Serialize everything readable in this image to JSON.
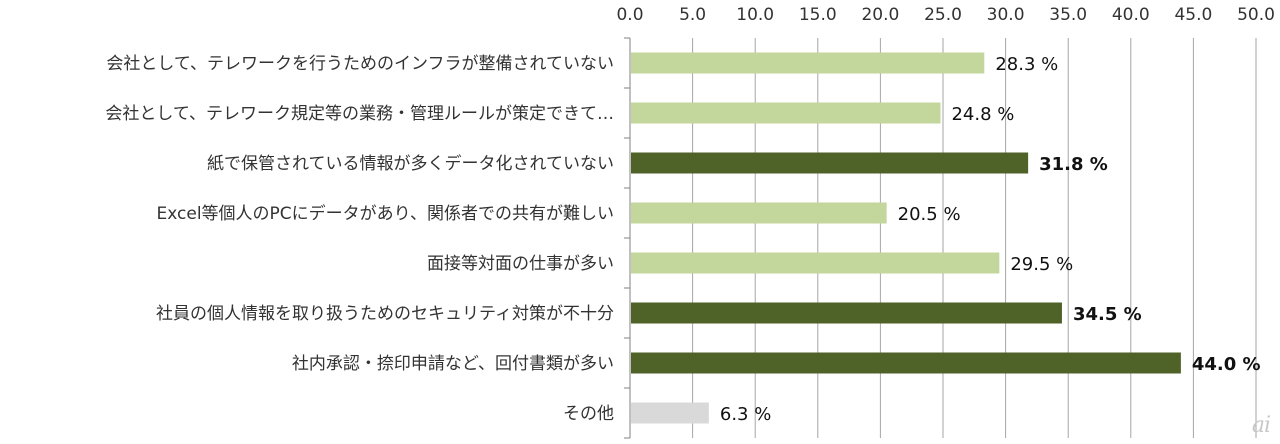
{
  "chart_data": {
    "type": "bar",
    "orientation": "horizontal",
    "xlim": [
      0,
      50
    ],
    "x_ticks": [
      "0.0",
      "5.0",
      "10.0",
      "15.0",
      "20.0",
      "25.0",
      "30.0",
      "35.0",
      "40.0",
      "45.0",
      "50.0"
    ],
    "grid": true,
    "categories": [
      "会社として、テレワークを行うためのインフラが整備されていない",
      "会社として、テレワーク規定等の業務・管理ルールが策定できて…",
      "紙で保管されている情報が多くデータ化されていない",
      "Excel等個人のPCにデータがあり、関係者での共有が難しい",
      "面接等対面の仕事が多い",
      "社員の個人情報を取り扱うためのセキュリティ対策が不十分",
      "社内承認・捺印申請など、回付書類が多い",
      "その他"
    ],
    "values": [
      28.3,
      24.8,
      31.8,
      20.5,
      29.5,
      34.5,
      44.0,
      6.3
    ],
    "value_labels": [
      "28.3 %",
      "24.8 %",
      "31.8 %",
      "20.5 %",
      "29.5 %",
      "34.5 %",
      "44.0 %",
      "6.3 %"
    ],
    "highlight": [
      false,
      false,
      true,
      false,
      false,
      true,
      true,
      false
    ],
    "colors": {
      "normal": "#c3d69b",
      "highlight": "#4f6228",
      "other": "#d9d9d9",
      "grid": "#a6a6a6",
      "axis": "#808080"
    }
  },
  "watermark": "ai"
}
